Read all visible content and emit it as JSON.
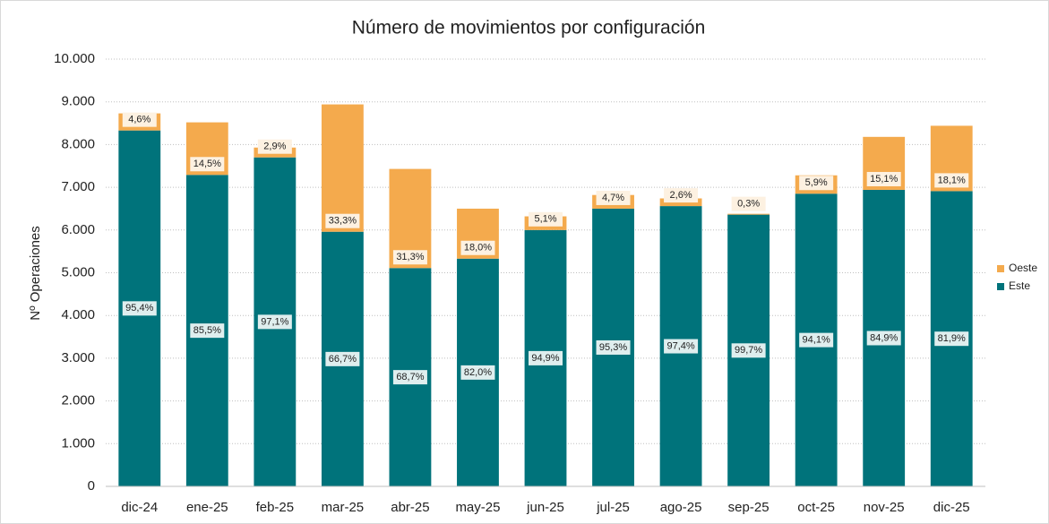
{
  "chart_data": {
    "type": "stacked_bar",
    "title": "Número de movimientos por configuración",
    "y_label": "Nº Operaciones",
    "categories": [
      "dic-24",
      "ene-25",
      "feb-25",
      "mar-25",
      "abr-25",
      "may-25",
      "jun-25",
      "jul-25",
      "ago-25",
      "sep-25",
      "oct-25",
      "nov-25",
      "dic-25"
    ],
    "series": [
      {
        "name": "Este",
        "color": "#00737b",
        "values": [
          8330,
          7290,
          7700,
          5960,
          5110,
          5330,
          6000,
          6500,
          6560,
          6360,
          6850,
          6940,
          6910
        ],
        "data_labels": [
          "95,4%",
          "85,5%",
          "97,1%",
          "66,7%",
          "68,7%",
          "82,0%",
          "94,9%",
          "95,3%",
          "97,4%",
          "99,7%",
          "94,1%",
          "84,9%",
          "81,9%"
        ]
      },
      {
        "name": "Oeste",
        "color": "#f4aa4d",
        "values": [
          400,
          1230,
          230,
          2980,
          2320,
          1170,
          320,
          320,
          180,
          20,
          430,
          1240,
          1530
        ],
        "data_labels": [
          "4,6%",
          "14,5%",
          "2,9%",
          "33,3%",
          "31,3%",
          "18,0%",
          "5,1%",
          "4,7%",
          "2,6%",
          "0,3%",
          "5,9%",
          "15,1%",
          "18,1%"
        ]
      }
    ],
    "ylim": [
      0,
      10000
    ],
    "yticks": [
      0,
      {
        "value": 1000,
        "label": "1.000"
      },
      {
        "value": 2000,
        "label": "2.000"
      },
      {
        "value": 3000,
        "label": "3.000"
      },
      {
        "value": 4000,
        "label": "4.000"
      },
      {
        "value": 5000,
        "label": "5.000"
      },
      {
        "value": 6000,
        "label": "6.000"
      },
      {
        "value": 7000,
        "label": "7.000"
      },
      {
        "value": 8000,
        "label": "8.000"
      },
      {
        "value": 9000,
        "label": "9.000"
      },
      {
        "value": 10000,
        "label": "10.000"
      }
    ],
    "grid": true,
    "legend": "right"
  }
}
